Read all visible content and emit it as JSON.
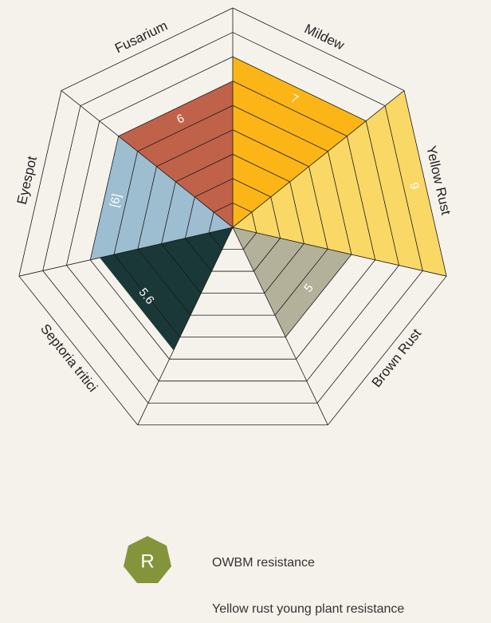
{
  "chart_data": {
    "type": "radar",
    "categories": [
      "Mildew",
      "Yellow Rust",
      "Brown Rust",
      null,
      "Septoria tritici",
      "Eyespot",
      "Fusarium"
    ],
    "values": [
      7,
      9,
      5,
      null,
      5.6,
      6,
      6
    ],
    "value_labels": [
      "7",
      "9",
      "5",
      null,
      "5.6",
      "[6]",
      "6"
    ],
    "colors": [
      "#fbb516",
      "#fad866",
      "#b4b19a",
      null,
      "#1a3838",
      "#9dbdd1",
      "#c0614a"
    ],
    "rlim": [
      0,
      9
    ],
    "rticks": [
      1,
      2,
      3,
      4,
      5,
      6,
      7,
      8,
      9
    ],
    "grid": true
  },
  "legend": {
    "symbol": "R",
    "items": [
      "OWBM resistance",
      "Yellow rust young plant resistance"
    ]
  }
}
